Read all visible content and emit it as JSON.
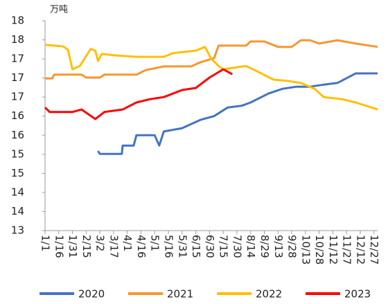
{
  "chart_data": {
    "type": "line",
    "y_label": "万吨",
    "xlim": [
      0,
      364
    ],
    "xticks": [
      {
        "value": 0,
        "label": "1/1"
      },
      {
        "value": 15,
        "label": "1/16"
      },
      {
        "value": 30,
        "label": "1/31"
      },
      {
        "value": 45,
        "label": "2/15"
      },
      {
        "value": 60,
        "label": "3/2"
      },
      {
        "value": 75,
        "label": "3/17"
      },
      {
        "value": 90,
        "label": "4/1"
      },
      {
        "value": 105,
        "label": "4/16"
      },
      {
        "value": 120,
        "label": "5/1"
      },
      {
        "value": 135,
        "label": "5/16"
      },
      {
        "value": 150,
        "label": "5/31"
      },
      {
        "value": 165,
        "label": "6/15"
      },
      {
        "value": 180,
        "label": "6/30"
      },
      {
        "value": 195,
        "label": "7/15"
      },
      {
        "value": 210,
        "label": "7/30"
      },
      {
        "value": 225,
        "label": "8/14"
      },
      {
        "value": 240,
        "label": "8/29"
      },
      {
        "value": 255,
        "label": "9/13"
      },
      {
        "value": 270,
        "label": "9/28"
      },
      {
        "value": 285,
        "label": "10/13"
      },
      {
        "value": 300,
        "label": "10/28"
      },
      {
        "value": 315,
        "label": "11/12"
      },
      {
        "value": 330,
        "label": "11/27"
      },
      {
        "value": 345,
        "label": "12/12"
      },
      {
        "value": 360,
        "label": "12/27"
      }
    ],
    "ylim": [
      13.3,
      18.36
    ],
    "yticks": [
      {
        "value": 13.3,
        "label": "13"
      },
      {
        "value": 13.76,
        "label": "14"
      },
      {
        "value": 14.22,
        "label": "14"
      },
      {
        "value": 14.68,
        "label": "15"
      },
      {
        "value": 15.14,
        "label": "15"
      },
      {
        "value": 15.6,
        "label": "16"
      },
      {
        "value": 16.06,
        "label": "16"
      },
      {
        "value": 16.52,
        "label": "17"
      },
      {
        "value": 16.98,
        "label": "17"
      },
      {
        "value": 17.44,
        "label": "17"
      },
      {
        "value": 17.9,
        "label": "18"
      },
      {
        "value": 18.36,
        "label": "18"
      }
    ],
    "series": [
      {
        "name": "2020",
        "color": "#4472c4",
        "x": [
          58,
          60,
          70,
          84,
          85,
          97,
          100,
          120,
          125,
          130,
          150,
          170,
          185,
          200,
          215,
          225,
          245,
          260,
          275,
          290,
          305,
          320,
          340,
          364
        ],
        "values": [
          15.22,
          15.15,
          15.15,
          15.15,
          15.35,
          15.35,
          15.6,
          15.6,
          15.35,
          15.69,
          15.77,
          15.97,
          16.06,
          16.27,
          16.31,
          16.39,
          16.61,
          16.72,
          16.77,
          16.77,
          16.82,
          16.86,
          17.09,
          17.09
        ]
      },
      {
        "name": "2021",
        "color": "#f7962f",
        "x": [
          0,
          8,
          10,
          40,
          45,
          60,
          65,
          100,
          110,
          130,
          160,
          170,
          185,
          190,
          220,
          225,
          240,
          255,
          270,
          280,
          290,
          300,
          320,
          340,
          364
        ],
        "values": [
          16.97,
          16.97,
          17.06,
          17.06,
          16.99,
          16.99,
          17.06,
          17.06,
          17.17,
          17.26,
          17.26,
          17.36,
          17.46,
          17.76,
          17.76,
          17.86,
          17.86,
          17.73,
          17.73,
          17.89,
          17.89,
          17.81,
          17.89,
          17.81,
          17.73
        ]
      },
      {
        "name": "2022",
        "color": "#ffc000",
        "x": [
          0,
          20,
          25,
          30,
          38,
          50,
          55,
          58,
          62,
          75,
          100,
          130,
          140,
          165,
          175,
          182,
          190,
          195,
          210,
          220,
          235,
          250,
          265,
          280,
          295,
          305,
          325,
          340,
          364
        ],
        "values": [
          17.78,
          17.74,
          17.66,
          17.19,
          17.27,
          17.68,
          17.64,
          17.39,
          17.56,
          17.53,
          17.49,
          17.49,
          17.58,
          17.64,
          17.73,
          17.44,
          17.27,
          17.19,
          17.24,
          17.27,
          17.11,
          16.94,
          16.91,
          16.86,
          16.72,
          16.52,
          16.47,
          16.39,
          16.22
        ]
      },
      {
        "name": "2023",
        "color": "#ff0000",
        "x": [
          0,
          5,
          30,
          40,
          55,
          65,
          75,
          85,
          100,
          115,
          130,
          150,
          165,
          180,
          195,
          205
        ],
        "values": [
          16.27,
          16.16,
          16.16,
          16.22,
          15.99,
          16.16,
          16.19,
          16.22,
          16.39,
          16.47,
          16.52,
          16.69,
          16.74,
          16.99,
          17.19,
          17.07
        ]
      }
    ]
  }
}
